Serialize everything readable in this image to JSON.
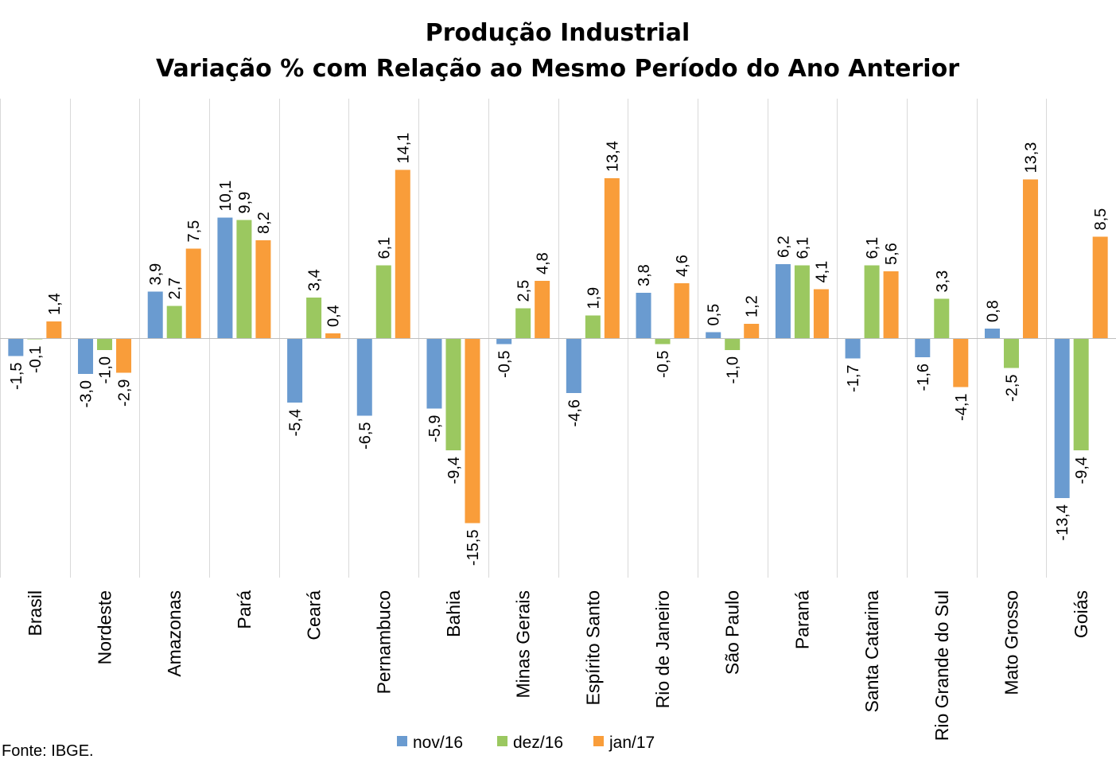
{
  "chart_data": {
    "type": "bar",
    "title": "Produção Industrial",
    "subtitle": "Variação % com Relação ao Mesmo Período do Ano Anterior",
    "categories": [
      "Brasil",
      "Nordeste",
      "Amazonas",
      "Pará",
      "Ceará",
      "Pernambuco",
      "Bahia",
      "Minas Gerais",
      "Espírito Santo",
      "Rio de Janeiro",
      "São Paulo",
      "Paraná",
      "Santa Catarina",
      "Rio Grande do Sul",
      "Mato Grosso",
      "Goiás"
    ],
    "series": [
      {
        "name": "nov/16",
        "color": "#6a9bd0",
        "values": [
          -1.5,
          -3.0,
          3.9,
          10.1,
          -5.4,
          -6.5,
          -5.9,
          -0.5,
          -4.6,
          3.8,
          0.5,
          6.2,
          -1.7,
          -1.6,
          0.8,
          -13.4
        ]
      },
      {
        "name": "dez/16",
        "color": "#9bc860",
        "values": [
          -0.1,
          -1.0,
          2.7,
          9.9,
          3.4,
          6.1,
          -9.4,
          2.5,
          1.9,
          -0.5,
          -1.0,
          6.1,
          6.1,
          3.3,
          -2.5,
          -9.4
        ]
      },
      {
        "name": "jan/17",
        "color": "#f99d3a",
        "values": [
          1.4,
          -2.9,
          7.5,
          8.2,
          0.4,
          14.1,
          -15.5,
          4.8,
          13.4,
          4.6,
          1.2,
          4.1,
          5.6,
          -4.1,
          13.3,
          8.5
        ]
      }
    ],
    "decimal_separator": ",",
    "xlabel": "",
    "ylabel": "",
    "ylim": [
      -20,
      20
    ],
    "grid": "vertical category separators",
    "legend": "bottom",
    "source": "Fonte: IBGE."
  }
}
